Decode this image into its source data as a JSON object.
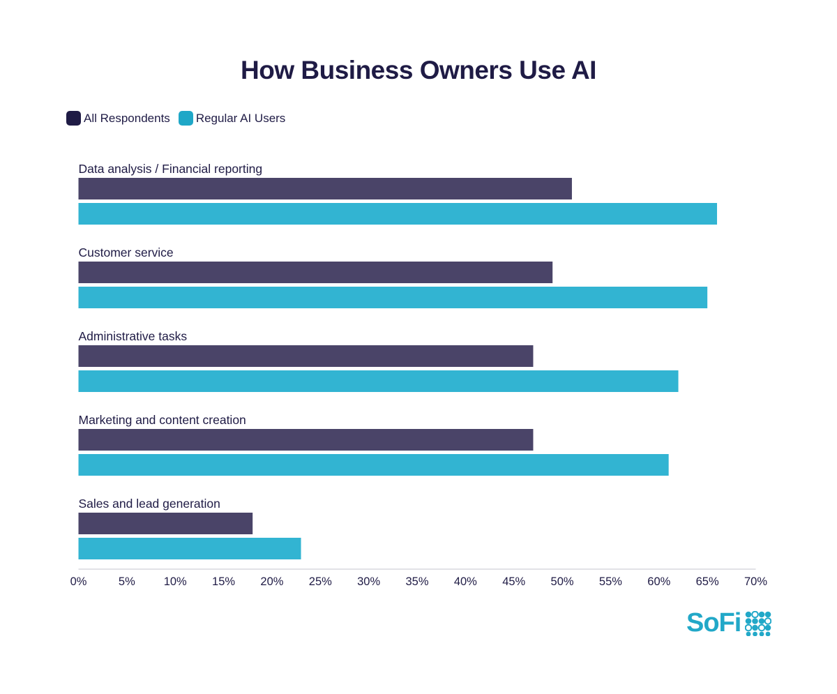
{
  "chart_data": {
    "type": "bar",
    "orientation": "horizontal",
    "title": "How Business Owners Use AI",
    "categories": [
      "Data analysis / Financial reporting",
      "Customer service",
      "Administrative tasks",
      "Marketing and content creation",
      "Sales and lead generation"
    ],
    "series": [
      {
        "name": "All Respondents",
        "color": "#4a4468",
        "legend_color": "#1f1b45",
        "values": [
          51,
          49,
          47,
          47,
          18
        ]
      },
      {
        "name": "Regular AI Users",
        "color": "#32b4d2",
        "legend_color": "#1fa7c7",
        "values": [
          66,
          65,
          62,
          61,
          23
        ]
      }
    ],
    "xlim": [
      0,
      70
    ],
    "xticks": [
      0,
      5,
      10,
      15,
      20,
      25,
      30,
      35,
      40,
      45,
      50,
      55,
      60,
      65,
      70
    ],
    "xtick_labels": [
      "0%",
      "5%",
      "10%",
      "15%",
      "20%",
      "25%",
      "30%",
      "35%",
      "40%",
      "45%",
      "50%",
      "55%",
      "60%",
      "65%",
      "70%"
    ],
    "grid": false,
    "legend_position": "top-left"
  },
  "brand": {
    "logo_text": "SoFi",
    "logo_color": "#22a8c8"
  }
}
